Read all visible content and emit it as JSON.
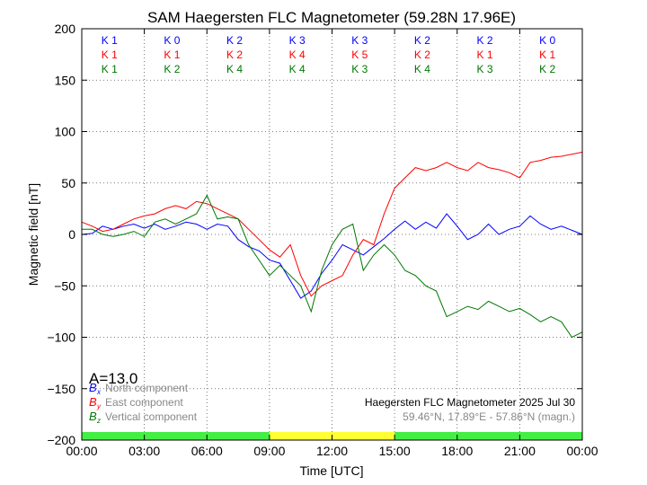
{
  "chart_data": {
    "type": "line",
    "title": "SAM Haegersten FLC Magnetometer (59.28N 17.96E)",
    "xlabel": "Time [UTC]",
    "ylabel": "Magnetic field [nT]",
    "xlim": [
      0,
      24
    ],
    "ylim": [
      -200,
      200
    ],
    "x_tick_labels": [
      "00:00",
      "03:00",
      "06:00",
      "09:00",
      "12:00",
      "15:00",
      "18:00",
      "21:00",
      "00:00"
    ],
    "y_ticks": [
      -200,
      -150,
      -100,
      -50,
      0,
      50,
      100,
      150,
      200
    ],
    "y_tick_labels": [
      "−200",
      "−150",
      "−100",
      "−50",
      "0",
      "50",
      "100",
      "150",
      "200"
    ],
    "grid": true,
    "grid_style": "dotted",
    "k_indices": {
      "blocks": [
        {
          "x": "K 1",
          "y": "K 1",
          "z": "K 1"
        },
        {
          "x": "K 0",
          "y": "K 1",
          "z": "K 2"
        },
        {
          "x": "K 2",
          "y": "K 2",
          "z": "K 4"
        },
        {
          "x": "K 3",
          "y": "K 4",
          "z": "K 4"
        },
        {
          "x": "K 3",
          "y": "K 5",
          "z": "K 3"
        },
        {
          "x": "K 2",
          "y": "K 2",
          "z": "K 4"
        },
        {
          "x": "K 2",
          "y": "K 1",
          "z": "K 3"
        },
        {
          "x": "K 0",
          "y": "K 1",
          "z": "K 2"
        }
      ]
    },
    "activity_label": "A=13.0",
    "legend_position": "bottom-left",
    "legend": [
      {
        "symbol": "B",
        "sub": "x",
        "label": "North component",
        "color": "#0000ff"
      },
      {
        "symbol": "B",
        "sub": "y",
        "label": "East component",
        "color": "#ff0000"
      },
      {
        "symbol": "B",
        "sub": "z",
        "label": "Vertical component",
        "color": "#007700"
      }
    ],
    "station_text": "Haegersten FLC Magnetometer 2025 Jul 30",
    "coords_text": "59.46°N, 17.89°E - 57.86°N (magn.)",
    "activity_bar": [
      {
        "from": 0,
        "to": 9,
        "color": "#44ee44"
      },
      {
        "from": 9,
        "to": 15,
        "color": "#ffff33"
      },
      {
        "from": 15,
        "to": 24,
        "color": "#44ee44"
      }
    ],
    "series": [
      {
        "name": "North component",
        "color": "#0000ff",
        "points": [
          [
            0,
            0
          ],
          [
            0.5,
            1
          ],
          [
            1,
            8
          ],
          [
            1.5,
            5
          ],
          [
            2,
            8
          ],
          [
            2.5,
            10
          ],
          [
            3,
            6
          ],
          [
            3.5,
            10
          ],
          [
            4,
            5
          ],
          [
            4.5,
            8
          ],
          [
            5,
            12
          ],
          [
            5.5,
            10
          ],
          [
            6,
            5
          ],
          [
            6.5,
            10
          ],
          [
            7,
            8
          ],
          [
            7.5,
            -5
          ],
          [
            8,
            -12
          ],
          [
            8.5,
            -16
          ],
          [
            9,
            -25
          ],
          [
            9.5,
            -28
          ],
          [
            10,
            -45
          ],
          [
            10.5,
            -62
          ],
          [
            11,
            -55
          ],
          [
            11.5,
            -38
          ],
          [
            12,
            -25
          ],
          [
            12.5,
            -10
          ],
          [
            13,
            -15
          ],
          [
            13.5,
            -20
          ],
          [
            14,
            -12
          ],
          [
            14.5,
            -4
          ],
          [
            15,
            5
          ],
          [
            15.5,
            13
          ],
          [
            16,
            5
          ],
          [
            16.5,
            12
          ],
          [
            17,
            6
          ],
          [
            17.5,
            20
          ],
          [
            18,
            8
          ],
          [
            18.5,
            -5
          ],
          [
            19,
            0
          ],
          [
            19.5,
            10
          ],
          [
            20,
            0
          ],
          [
            20.5,
            5
          ],
          [
            21,
            8
          ],
          [
            21.5,
            18
          ],
          [
            22,
            10
          ],
          [
            22.5,
            5
          ],
          [
            23,
            8
          ],
          [
            23.5,
            4
          ],
          [
            24,
            0
          ]
        ]
      },
      {
        "name": "East component",
        "color": "#ff0000",
        "points": [
          [
            0,
            12
          ],
          [
            0.5,
            8
          ],
          [
            1,
            3
          ],
          [
            1.5,
            5
          ],
          [
            2,
            10
          ],
          [
            2.5,
            15
          ],
          [
            3,
            18
          ],
          [
            3.5,
            20
          ],
          [
            4,
            25
          ],
          [
            4.5,
            28
          ],
          [
            5,
            25
          ],
          [
            5.5,
            32
          ],
          [
            6,
            30
          ],
          [
            6.5,
            25
          ],
          [
            7,
            20
          ],
          [
            7.5,
            15
          ],
          [
            8,
            5
          ],
          [
            8.5,
            -5
          ],
          [
            9,
            -15
          ],
          [
            9.5,
            -22
          ],
          [
            10,
            -10
          ],
          [
            10.5,
            -40
          ],
          [
            11,
            -60
          ],
          [
            11.5,
            -50
          ],
          [
            12,
            -45
          ],
          [
            12.5,
            -40
          ],
          [
            13,
            -20
          ],
          [
            13.5,
            -5
          ],
          [
            14,
            -10
          ],
          [
            14.5,
            20
          ],
          [
            15,
            45
          ],
          [
            15.5,
            55
          ],
          [
            16,
            65
          ],
          [
            16.5,
            62
          ],
          [
            17,
            65
          ],
          [
            17.5,
            70
          ],
          [
            18,
            65
          ],
          [
            18.5,
            62
          ],
          [
            19,
            70
          ],
          [
            19.5,
            65
          ],
          [
            20,
            63
          ],
          [
            20.5,
            60
          ],
          [
            21,
            55
          ],
          [
            21.5,
            70
          ],
          [
            22,
            72
          ],
          [
            22.5,
            75
          ],
          [
            23,
            76
          ],
          [
            23.5,
            78
          ],
          [
            24,
            80
          ]
        ]
      },
      {
        "name": "Vertical component",
        "color": "#007700",
        "points": [
          [
            0,
            5
          ],
          [
            0.5,
            5
          ],
          [
            1,
            0
          ],
          [
            1.5,
            -2
          ],
          [
            2,
            0
          ],
          [
            2.5,
            3
          ],
          [
            3,
            -2
          ],
          [
            3.5,
            12
          ],
          [
            4,
            15
          ],
          [
            4.5,
            10
          ],
          [
            5,
            15
          ],
          [
            5.5,
            20
          ],
          [
            6,
            38
          ],
          [
            6.5,
            15
          ],
          [
            7,
            17
          ],
          [
            7.5,
            15
          ],
          [
            8,
            -10
          ],
          [
            8.5,
            -25
          ],
          [
            9,
            -40
          ],
          [
            9.5,
            -30
          ],
          [
            10,
            -40
          ],
          [
            10.5,
            -50
          ],
          [
            11,
            -75
          ],
          [
            11.5,
            -35
          ],
          [
            12,
            -10
          ],
          [
            12.5,
            5
          ],
          [
            13,
            10
          ],
          [
            13.5,
            -35
          ],
          [
            14,
            -20
          ],
          [
            14.5,
            -10
          ],
          [
            15,
            -20
          ],
          [
            15.5,
            -35
          ],
          [
            16,
            -40
          ],
          [
            16.5,
            -50
          ],
          [
            17,
            -55
          ],
          [
            17.5,
            -80
          ],
          [
            18,
            -75
          ],
          [
            18.5,
            -70
          ],
          [
            19,
            -73
          ],
          [
            19.5,
            -65
          ],
          [
            20,
            -70
          ],
          [
            20.5,
            -75
          ],
          [
            21,
            -72
          ],
          [
            21.5,
            -78
          ],
          [
            22,
            -85
          ],
          [
            22.5,
            -80
          ],
          [
            23,
            -85
          ],
          [
            23.5,
            -100
          ],
          [
            24,
            -95
          ]
        ]
      }
    ]
  }
}
